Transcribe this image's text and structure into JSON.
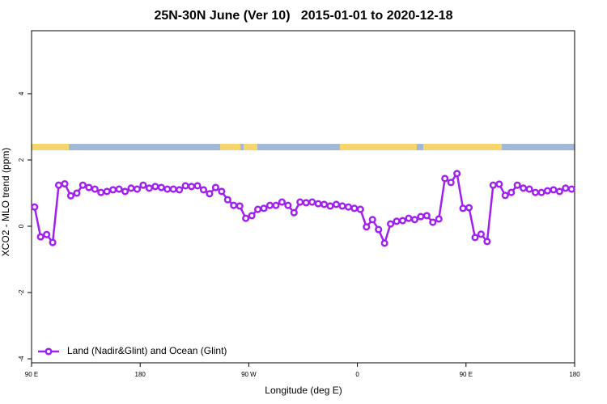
{
  "chart_data": {
    "type": "line",
    "title": "25N-30N June (Ver 10)   2015-01-01 to 2020-12-18",
    "x_label": "Longitude (deg E)",
    "y_label": "XCO2 - MLO trend (ppm)",
    "x": [
      92.5,
      97.5,
      102.5,
      107.5,
      112.5,
      117.5,
      122.5,
      127.5,
      132.5,
      137.5,
      142.5,
      147.5,
      152.5,
      157.5,
      162.5,
      167.5,
      172.5,
      177.5,
      182.5,
      187.5,
      192.5,
      197.5,
      202.5,
      207.5,
      212.5,
      217.5,
      222.5,
      227.5,
      232.5,
      237.5,
      242.5,
      247.5,
      252.5,
      257.5,
      262.5,
      267.5,
      272.5,
      277.5,
      282.5,
      287.5,
      292.5,
      297.5,
      302.5,
      307.5,
      312.5,
      317.5,
      322.5,
      327.5,
      332.5,
      337.5,
      342.5,
      347.5,
      352.5,
      357.5,
      362.5,
      367.5,
      372.5,
      377.5,
      382.5,
      387.5,
      392.5,
      397.5,
      402.5,
      407.5,
      412.5,
      417.5,
      422.5,
      427.5,
      432.5,
      437.5,
      442.5,
      447.5,
      452.5,
      457.5,
      462.5,
      467.5,
      472.5,
      477.5,
      482.5,
      487.5,
      492.5,
      497.5,
      502.5,
      507.5,
      512.5,
      517.5,
      522.5,
      527.5,
      532.5,
      537.5
    ],
    "series": [
      {
        "name": "Land (Nadir&Glint) and Ocean (Glint)",
        "color": "#a020f0",
        "values": [
          0.58,
          -0.32,
          -0.25,
          -0.49,
          1.24,
          1.28,
          0.92,
          1.0,
          1.24,
          1.17,
          1.12,
          1.02,
          1.05,
          1.1,
          1.12,
          1.05,
          1.15,
          1.12,
          1.24,
          1.15,
          1.2,
          1.17,
          1.12,
          1.12,
          1.1,
          1.22,
          1.2,
          1.22,
          1.1,
          0.98,
          1.17,
          1.05,
          0.8,
          0.63,
          0.61,
          0.24,
          0.32,
          0.51,
          0.54,
          0.63,
          0.63,
          0.73,
          0.63,
          0.41,
          0.73,
          0.71,
          0.73,
          0.68,
          0.66,
          0.61,
          0.66,
          0.61,
          0.58,
          0.54,
          0.51,
          -0.02,
          0.2,
          -0.1,
          -0.51,
          0.07,
          0.15,
          0.17,
          0.24,
          0.2,
          0.29,
          0.32,
          0.12,
          0.22,
          1.44,
          1.32,
          1.59,
          0.54,
          0.56,
          -0.34,
          -0.24,
          -0.46,
          1.24,
          1.27,
          0.93,
          1.02,
          1.24,
          1.15,
          1.12,
          1.02,
          1.02,
          1.07,
          1.1,
          1.05,
          1.15,
          1.12
        ]
      }
    ],
    "xlim": [
      90,
      540
    ],
    "xticks": [
      {
        "value": 90,
        "label": "90 E"
      },
      180,
      {
        "value": 270,
        "label": "90 W"
      },
      {
        "value": 360,
        "label": "0"
      },
      {
        "value": 450,
        "label": "90 E"
      },
      {
        "value": 540,
        "label": "180"
      }
    ],
    "ylim": [
      -4.12,
      5.9
    ],
    "yticks": [
      -4,
      -2,
      0,
      2,
      4
    ],
    "legend": "bottom-left"
  }
}
